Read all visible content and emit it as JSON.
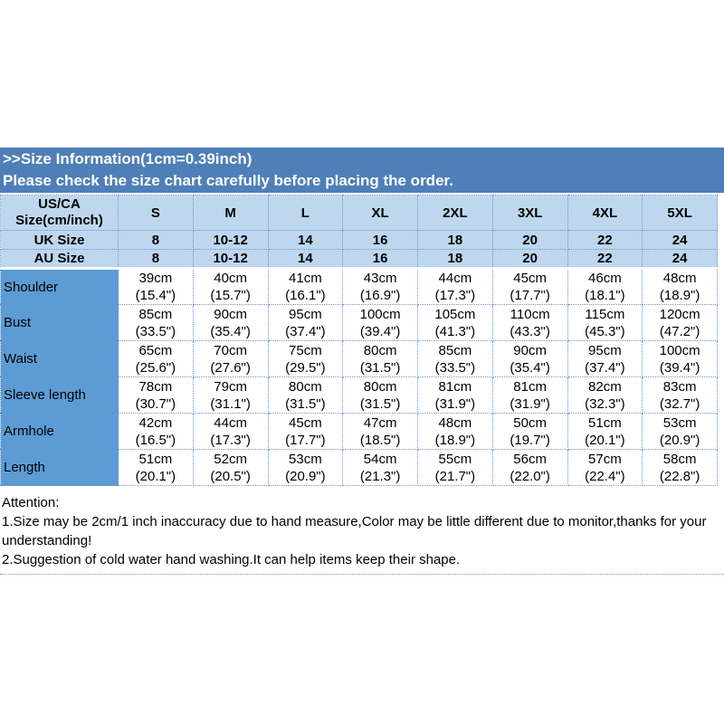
{
  "banner": {
    "title": ">>Size Information(1cm=0.39inch)",
    "subtitle": "Please check the size chart carefully before placing the order."
  },
  "size_chart": {
    "corner": {
      "line1": "US/CA",
      "line2": "Size(cm/inch)"
    },
    "size_headers": [
      "S",
      "M",
      "L",
      "XL",
      "2XL",
      "3XL",
      "4XL",
      "5XL"
    ],
    "region_rows": [
      {
        "label": "UK Size",
        "values": [
          "8",
          "10-12",
          "14",
          "16",
          "18",
          "20",
          "22",
          "24"
        ]
      },
      {
        "label": "AU Size",
        "values": [
          "8",
          "10-12",
          "14",
          "16",
          "18",
          "20",
          "22",
          "24"
        ]
      }
    ],
    "measurement_rows": [
      {
        "label": "Shoulder",
        "cm": [
          "39cm",
          "40cm",
          "41cm",
          "43cm",
          "44cm",
          "45cm",
          "46cm",
          "48cm"
        ],
        "inch": [
          "(15.4\")",
          "(15.7\")",
          "(16.1\")",
          "(16.9\")",
          "(17.3\")",
          "(17.7\")",
          "(18.1\")",
          "(18.9\")"
        ]
      },
      {
        "label": "Bust",
        "cm": [
          "85cm",
          "90cm",
          "95cm",
          "100cm",
          "105cm",
          "110cm",
          "115cm",
          "120cm"
        ],
        "inch": [
          "(33.5\")",
          "(35.4\")",
          "(37.4\")",
          "(39.4\")",
          "(41.3\")",
          "(43.3\")",
          "(45.3\")",
          "(47.2\")"
        ]
      },
      {
        "label": "Waist",
        "cm": [
          "65cm",
          "70cm",
          "75cm",
          "80cm",
          "85cm",
          "90cm",
          "95cm",
          "100cm"
        ],
        "inch": [
          "(25.6\")",
          "(27.6\")",
          "(29.5\")",
          "(31.5\")",
          "(33.5\")",
          "(35.4\")",
          "(37.4\")",
          "(39.4\")"
        ]
      },
      {
        "label": "Sleeve length",
        "cm": [
          "78cm",
          "79cm",
          "80cm",
          "80cm",
          "81cm",
          "81cm",
          "82cm",
          "83cm"
        ],
        "inch": [
          "(30.7\")",
          "(31.1\")",
          "(31.5\")",
          "(31.5\")",
          "(31.9\")",
          "(31.9\")",
          "(32.3\")",
          "(32.7\")"
        ]
      },
      {
        "label": "Armhole",
        "cm": [
          "42cm",
          "44cm",
          "45cm",
          "47cm",
          "48cm",
          "50cm",
          "51cm",
          "53cm"
        ],
        "inch": [
          "(16.5\")",
          "(17.3\")",
          "(17.7\")",
          "(18.5\")",
          "(18.9\")",
          "(19.7\")",
          "(20.1\")",
          "(20.9\")"
        ]
      },
      {
        "label": "Length",
        "cm": [
          "51cm",
          "52cm",
          "53cm",
          "54cm",
          "55cm",
          "56cm",
          "57cm",
          "58cm"
        ],
        "inch": [
          "(20.1\")",
          "(20.5\")",
          "(20.9\")",
          "(21.3\")",
          "(21.7\")",
          "(22.0\")",
          "(22.4\")",
          "(22.8\")"
        ]
      }
    ]
  },
  "attention": {
    "heading": "Attention:",
    "note1": "1.Size may be 2cm/1 inch inaccuracy due to hand measure,Color may be little different due to monitor,thanks for your understanding!",
    "note2": "2.Suggestion of cold water hand washing.It can help items keep their shape."
  },
  "colors": {
    "banner_bg": "#4e7fb8",
    "header_cell_bg": "#bed7ef",
    "measure_label_bg": "#5d9bd4",
    "cell_border": "#6d94c9",
    "banner_text": "#ffffff",
    "body_text": "#000000"
  }
}
